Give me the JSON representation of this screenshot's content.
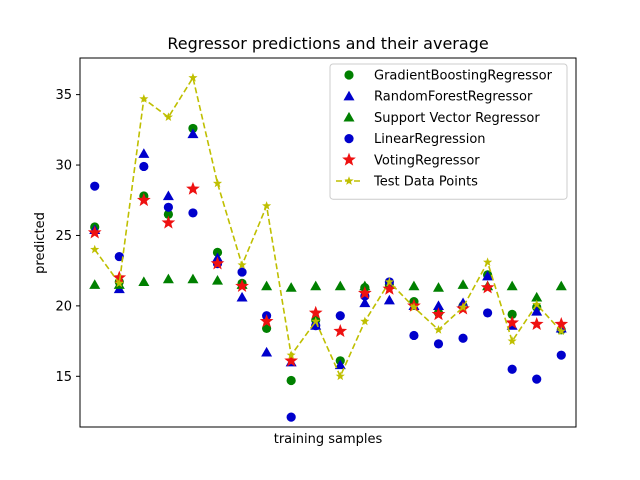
{
  "chart_data": {
    "type": "scatter",
    "title": "Regressor predictions and their average",
    "xlabel": "training samples",
    "ylabel": "predicted",
    "xlim": [
      -0.6,
      19.6
    ],
    "ylim": [
      11.4,
      37.6
    ],
    "yticks": [
      15,
      20,
      25,
      30,
      35
    ],
    "x": [
      0,
      1,
      2,
      3,
      4,
      5,
      6,
      7,
      8,
      9,
      10,
      11,
      12,
      13,
      14,
      15,
      16,
      17,
      18,
      19
    ],
    "legend_position": "top-right",
    "series": [
      {
        "name": "GradientBoostingRegressor",
        "marker": "circle",
        "color": "#008000",
        "line": false,
        "values": [
          25.6,
          21.7,
          27.8,
          26.5,
          32.6,
          23.8,
          21.6,
          18.4,
          14.7,
          19.0,
          16.1,
          21.3,
          21.5,
          20.3,
          19.5,
          20.0,
          22.2,
          19.4,
          19.9,
          18.3
        ]
      },
      {
        "name": "RandomForestRegressor",
        "marker": "triangle",
        "color": "#0000cc",
        "line": false,
        "values": [
          25.4,
          21.2,
          30.8,
          27.8,
          32.2,
          23.4,
          20.6,
          16.7,
          16.0,
          18.6,
          15.8,
          20.2,
          20.4,
          20.0,
          20.0,
          20.2,
          22.1,
          18.6,
          19.6,
          18.4
        ]
      },
      {
        "name": "Support Vector Regressor",
        "marker": "triangle",
        "color": "#008000",
        "line": false,
        "values": [
          21.5,
          21.5,
          21.7,
          21.9,
          21.9,
          21.8,
          21.5,
          21.4,
          21.3,
          21.4,
          21.4,
          21.4,
          21.5,
          21.4,
          21.3,
          21.5,
          21.4,
          21.4,
          20.6,
          21.4
        ]
      },
      {
        "name": "LinearRegression",
        "marker": "circle",
        "color": "#0000cc",
        "line": false,
        "values": [
          28.5,
          23.5,
          29.9,
          27.0,
          26.6,
          23.0,
          22.4,
          19.3,
          12.1,
          18.6,
          19.3,
          20.7,
          21.7,
          17.9,
          17.3,
          17.7,
          19.5,
          15.5,
          14.8,
          16.5
        ]
      },
      {
        "name": "VotingRegressor",
        "marker": "star",
        "color": "#ee1111",
        "line": false,
        "values": [
          25.2,
          22.0,
          27.5,
          25.9,
          28.3,
          23.0,
          21.4,
          18.9,
          16.1,
          19.5,
          18.2,
          20.9,
          21.2,
          20.0,
          19.4,
          19.8,
          21.3,
          18.8,
          18.7,
          18.7
        ]
      },
      {
        "name": "Test Data Points",
        "marker": "star",
        "color": "#bfbf00",
        "line": true,
        "values": [
          24.0,
          21.6,
          34.7,
          33.4,
          36.2,
          28.7,
          22.9,
          27.1,
          16.5,
          18.9,
          15.0,
          18.9,
          21.7,
          19.9,
          18.3,
          19.9,
          23.1,
          17.5,
          20.1,
          18.2
        ]
      }
    ]
  }
}
